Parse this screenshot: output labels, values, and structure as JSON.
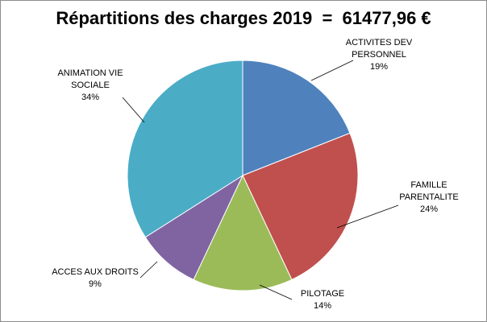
{
  "chart_data": {
    "type": "pie",
    "title": "Répartitions des charges 2019  =  61477,96 €",
    "slices": [
      {
        "label": [
          "ACTIVITES DEV",
          "PERSONNEL"
        ],
        "percent_label": "19%",
        "value": 19,
        "color": "#4f81bd"
      },
      {
        "label": [
          "FAMILLE",
          "PARENTALITE"
        ],
        "percent_label": "24%",
        "value": 24,
        "color": "#c0504d"
      },
      {
        "label": [
          "PILOTAGE"
        ],
        "percent_label": "14%",
        "value": 14,
        "color": "#9bbb59"
      },
      {
        "label": [
          "ACCES AUX DROITS"
        ],
        "percent_label": "9%",
        "value": 9,
        "color": "#8064a2"
      },
      {
        "label": [
          "ANIMATION VIE",
          "SOCIALE"
        ],
        "percent_label": "34%",
        "value": 34,
        "color": "#4bacc6"
      }
    ],
    "legend": "none",
    "start_angle_deg": 0,
    "direction": "clockwise"
  }
}
